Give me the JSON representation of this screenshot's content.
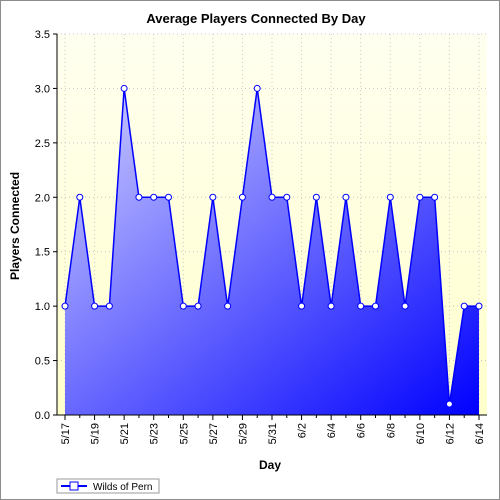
{
  "chart_data": {
    "type": "area",
    "title": "Average Players Connected By Day",
    "xlabel": "Day",
    "ylabel": "Players Connected",
    "ylim": [
      0,
      3.5
    ],
    "yticks": [
      "0.0",
      "0.5",
      "1.0",
      "1.5",
      "2.0",
      "2.5",
      "3.0",
      "3.5"
    ],
    "x": [
      "5/17",
      "5/18",
      "5/19",
      "5/20",
      "5/21",
      "5/22",
      "5/23",
      "5/24",
      "5/25",
      "5/26",
      "5/27",
      "5/28",
      "5/29",
      "5/30",
      "5/31",
      "6/1",
      "6/2",
      "6/3",
      "6/4",
      "6/5",
      "6/6",
      "6/7",
      "6/8",
      "6/9",
      "6/10",
      "6/11",
      "6/12",
      "6/13",
      "6/14"
    ],
    "xtick_labels": [
      "5/17",
      "5/19",
      "5/21",
      "5/23",
      "5/25",
      "5/27",
      "5/29",
      "5/31",
      "6/2",
      "6/4",
      "6/6",
      "6/8",
      "6/10",
      "6/12",
      "6/14"
    ],
    "series": [
      {
        "name": "Wilds of Pern",
        "values": [
          1,
          2,
          1,
          1,
          3,
          2,
          2,
          2,
          1,
          1,
          2,
          1,
          2,
          3,
          2,
          2,
          1,
          2,
          1,
          2,
          1,
          1,
          2,
          1,
          2,
          2,
          0.1,
          1,
          1
        ]
      }
    ],
    "grid": true,
    "legend_position": "bottom-left",
    "colors": {
      "line": "#0000ff",
      "fill_start": "#d0d0ff",
      "fill_end": "#0000ff",
      "plot_bg_top": "#fffff0",
      "plot_bg_bottom": "#ffffcc",
      "grid": "#c8c8c8"
    }
  }
}
